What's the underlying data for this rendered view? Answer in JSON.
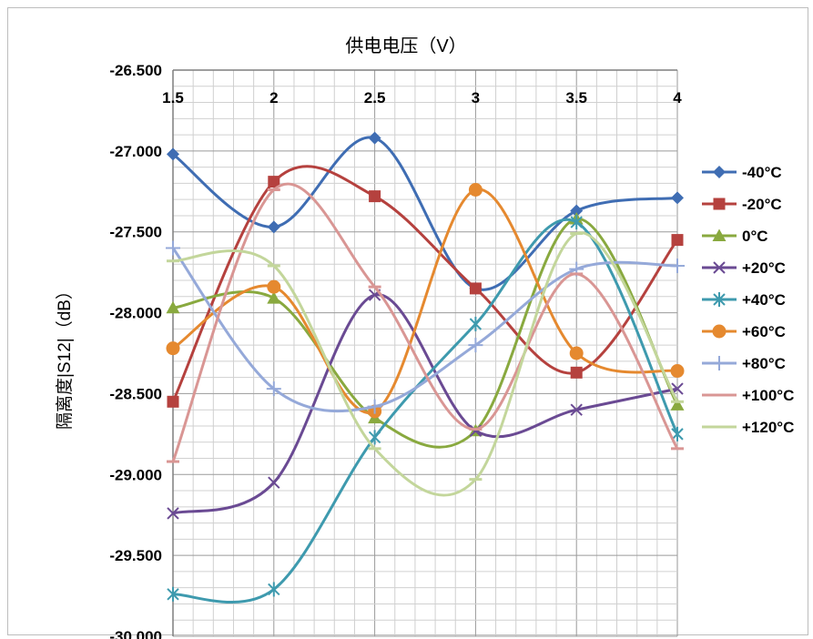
{
  "chart_data": {
    "type": "line",
    "title": "供电电压（V）",
    "ylabel": "隔离度|S12|（dB）",
    "xlabel": "",
    "x": [
      1.5,
      2,
      2.5,
      3,
      3.5,
      4
    ],
    "x_tick_labels": [
      "1.5",
      "2",
      "2.5",
      "3",
      "3.5",
      "4"
    ],
    "ylim": [
      -30.0,
      -26.5
    ],
    "y_ticks": [
      -26.5,
      -27.0,
      -27.5,
      -28.0,
      -28.5,
      -29.0,
      -29.5,
      -30.0
    ],
    "y_tick_labels": [
      "-26.500",
      "-27.000",
      "-27.500",
      "-28.000",
      "-28.500",
      "-29.000",
      "-29.500",
      "-30.000"
    ],
    "x_axis_position": "top",
    "smooth": true,
    "grid": true,
    "legend_position": "right",
    "series": [
      {
        "name": "-40°C",
        "color": "#3F6DB3",
        "marker": "diamond",
        "values": [
          -27.02,
          -27.47,
          -26.92,
          -27.85,
          -27.37,
          -27.29
        ]
      },
      {
        "name": "-20°C",
        "color": "#B5413E",
        "marker": "square",
        "values": [
          -28.55,
          -27.19,
          -27.28,
          -27.85,
          -28.37,
          -27.55
        ]
      },
      {
        "name": "0°C",
        "color": "#89A93F",
        "marker": "triangle",
        "values": [
          -27.97,
          -27.91,
          -28.65,
          -28.73,
          -27.42,
          -28.57
        ]
      },
      {
        "name": "+20°C",
        "color": "#6A4A93",
        "marker": "x",
        "values": [
          -29.24,
          -29.05,
          -27.89,
          -28.73,
          -28.6,
          -28.47
        ]
      },
      {
        "name": "+40°C",
        "color": "#3E9AAE",
        "marker": "asterisk",
        "values": [
          -29.74,
          -29.71,
          -28.77,
          -28.07,
          -27.44,
          -28.75
        ]
      },
      {
        "name": "+60°C",
        "color": "#E5892F",
        "marker": "circle",
        "values": [
          -28.22,
          -27.84,
          -28.61,
          -27.24,
          -28.25,
          -28.36
        ]
      },
      {
        "name": "+80°C",
        "color": "#95A9D9",
        "marker": "plus",
        "values": [
          -27.6,
          -28.47,
          -28.58,
          -28.2,
          -27.73,
          -27.71
        ]
      },
      {
        "name": "+100°C",
        "color": "#D99694",
        "marker": "dash",
        "values": [
          -28.92,
          -27.24,
          -27.84,
          -28.72,
          -27.76,
          -28.84
        ]
      },
      {
        "name": "+120°C",
        "color": "#C3D69B",
        "marker": "dash",
        "values": [
          -27.68,
          -27.71,
          -28.84,
          -29.03,
          -27.51,
          -28.55
        ]
      }
    ]
  }
}
